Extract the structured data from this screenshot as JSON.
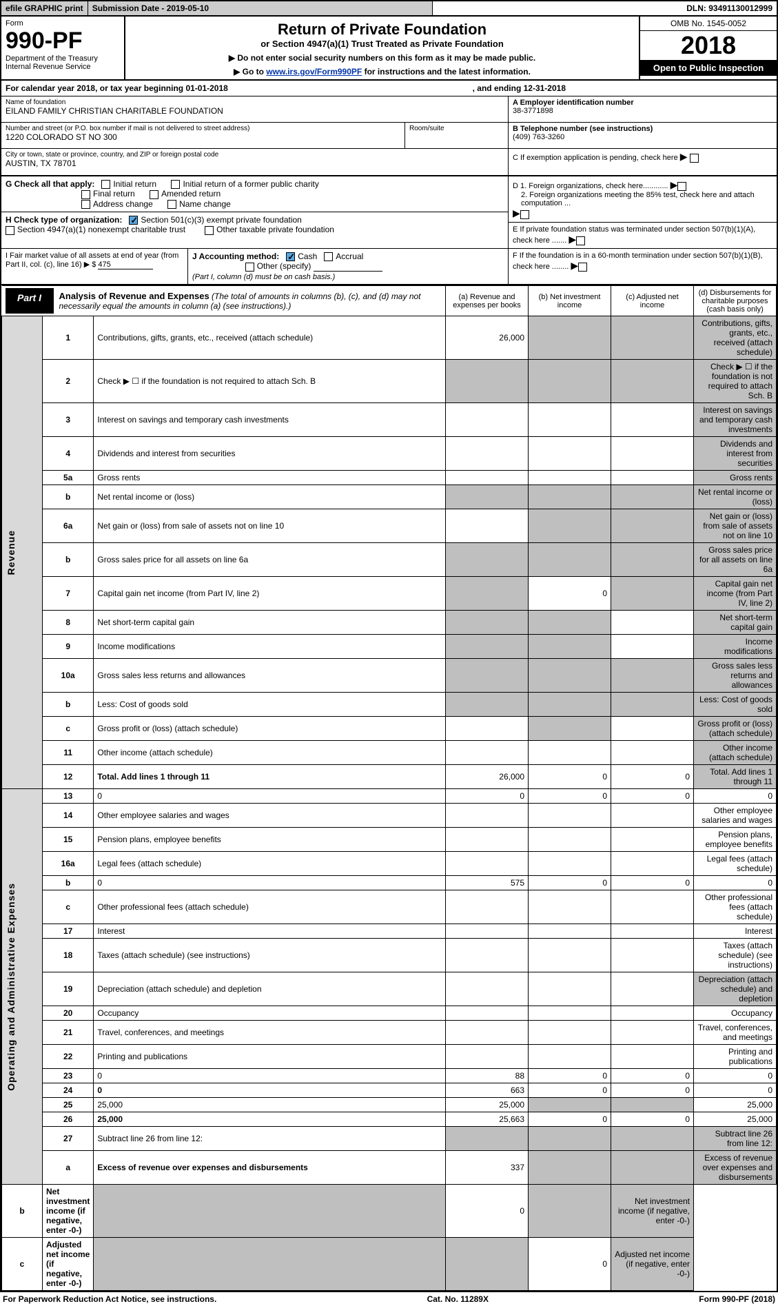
{
  "topbar": {
    "efile": "efile GRAPHIC print",
    "subdate_lbl": "Submission Date - 2019-05-10",
    "dln": "DLN: 93491130012999"
  },
  "header": {
    "form_lbl": "Form",
    "form_num": "990-PF",
    "dept": "Department of the Treasury",
    "irs": "Internal Revenue Service",
    "title": "Return of Private Foundation",
    "sub": "or Section 4947(a)(1) Trust Treated as Private Foundation",
    "instr1": "▶ Do not enter social security numbers on this form as it may be made public.",
    "instr2_pre": "▶ Go to ",
    "instr2_link": "www.irs.gov/Form990PF",
    "instr2_post": " for instructions and the latest information.",
    "omb": "OMB No. 1545-0052",
    "year": "2018",
    "open": "Open to Public Inspection"
  },
  "cal": {
    "text1": "For calendar year 2018, or tax year beginning 01-01-2018",
    "text2": ", and ending 12-31-2018"
  },
  "entity": {
    "name_lbl": "Name of foundation",
    "name": "EILAND FAMILY CHRISTIAN CHARITABLE FOUNDATION",
    "addr_lbl": "Number and street (or P.O. box number if mail is not delivered to street address)",
    "addr": "1220 COLORADO ST NO 300",
    "room_lbl": "Room/suite",
    "city_lbl": "City or town, state or province, country, and ZIP or foreign postal code",
    "city": "AUSTIN, TX  78701",
    "a_lbl": "A Employer identification number",
    "ein": "38-3771898",
    "b_lbl": "B Telephone number (see instructions)",
    "phone": "(409) 763-3260",
    "c_lbl": "C If exemption application is pending, check here",
    "d1": "D 1. Foreign organizations, check here............",
    "d2": "2. Foreign organizations meeting the 85% test, check here and attach computation ...",
    "e_lbl": "E  If private foundation status was terminated under section 507(b)(1)(A), check here .......",
    "f_lbl": "F  If the foundation is in a 60-month termination under section 507(b)(1)(B), check here ........"
  },
  "g": {
    "lbl": "G Check all that apply:",
    "opts": [
      "Initial return",
      "Initial return of a former public charity",
      "Final return",
      "Amended return",
      "Address change",
      "Name change"
    ]
  },
  "h": {
    "lbl": "H Check type of organization:",
    "o1": "Section 501(c)(3) exempt private foundation",
    "o2": "Section 4947(a)(1) nonexempt charitable trust",
    "o3": "Other taxable private foundation"
  },
  "i": {
    "lbl": "I Fair market value of all assets at end of year (from Part II, col. (c), line 16) ▶ $",
    "val": "475"
  },
  "j": {
    "lbl": "J Accounting method:",
    "cash": "Cash",
    "accr": "Accrual",
    "other": "Other (specify)",
    "note": "(Part I, column (d) must be on cash basis.)"
  },
  "part1": {
    "lbl": "Part I",
    "title": "Analysis of Revenue and Expenses",
    "note": "(The total of amounts in columns (b), (c), and (d) may not necessarily equal the amounts in column (a) (see instructions).)",
    "cols": {
      "a": "(a)   Revenue and expenses per books",
      "b": "(b)   Net investment income",
      "c": "(c)   Adjusted net income",
      "d": "(d)   Disbursements for charitable purposes (cash basis only)"
    }
  },
  "sidebars": {
    "rev": "Revenue",
    "exp": "Operating and Administrative Expenses"
  },
  "rows": [
    {
      "n": "1",
      "d": "Contributions, gifts, grants, etc., received (attach schedule)",
      "a": "26,000",
      "grey": [
        "b",
        "c",
        "d"
      ]
    },
    {
      "n": "2",
      "d": "Check ▶ ☐ if the foundation is not required to attach Sch. B",
      "grey": [
        "a",
        "b",
        "c",
        "d"
      ]
    },
    {
      "n": "3",
      "d": "Interest on savings and temporary cash investments",
      "grey": [
        "d"
      ]
    },
    {
      "n": "4",
      "d": "Dividends and interest from securities",
      "grey": [
        "d"
      ]
    },
    {
      "n": "5a",
      "d": "Gross rents",
      "grey": [
        "d"
      ]
    },
    {
      "n": "b",
      "d": "Net rental income or (loss)",
      "grey": [
        "a",
        "b",
        "c",
        "d"
      ]
    },
    {
      "n": "6a",
      "d": "Net gain or (loss) from sale of assets not on line 10",
      "grey": [
        "b",
        "c",
        "d"
      ]
    },
    {
      "n": "b",
      "d": "Gross sales price for all assets on line 6a",
      "grey": [
        "a",
        "b",
        "c",
        "d"
      ]
    },
    {
      "n": "7",
      "d": "Capital gain net income (from Part IV, line 2)",
      "b": "0",
      "grey": [
        "a",
        "c",
        "d"
      ]
    },
    {
      "n": "8",
      "d": "Net short-term capital gain",
      "grey": [
        "a",
        "b",
        "d"
      ]
    },
    {
      "n": "9",
      "d": "Income modifications",
      "grey": [
        "a",
        "b",
        "d"
      ]
    },
    {
      "n": "10a",
      "d": "Gross sales less returns and allowances",
      "grey": [
        "a",
        "b",
        "c",
        "d"
      ]
    },
    {
      "n": "b",
      "d": "Less: Cost of goods sold",
      "grey": [
        "a",
        "b",
        "c",
        "d"
      ]
    },
    {
      "n": "c",
      "d": "Gross profit or (loss) (attach schedule)",
      "grey": [
        "b",
        "d"
      ]
    },
    {
      "n": "11",
      "d": "Other income (attach schedule)",
      "grey": [
        "d"
      ]
    },
    {
      "n": "12",
      "d": "Total. Add lines 1 through 11",
      "a": "26,000",
      "b": "0",
      "c": "0",
      "grey": [
        "d"
      ],
      "bold": true
    },
    {
      "n": "13",
      "d": "0",
      "a": "0",
      "b": "0",
      "c": "0"
    },
    {
      "n": "14",
      "d": "Other employee salaries and wages"
    },
    {
      "n": "15",
      "d": "Pension plans, employee benefits"
    },
    {
      "n": "16a",
      "d": "Legal fees (attach schedule)"
    },
    {
      "n": "b",
      "d": "0",
      "a": "575",
      "b": "0",
      "c": "0"
    },
    {
      "n": "c",
      "d": "Other professional fees (attach schedule)"
    },
    {
      "n": "17",
      "d": "Interest"
    },
    {
      "n": "18",
      "d": "Taxes (attach schedule) (see instructions)"
    },
    {
      "n": "19",
      "d": "Depreciation (attach schedule) and depletion",
      "grey": [
        "d"
      ]
    },
    {
      "n": "20",
      "d": "Occupancy"
    },
    {
      "n": "21",
      "d": "Travel, conferences, and meetings"
    },
    {
      "n": "22",
      "d": "Printing and publications"
    },
    {
      "n": "23",
      "d": "0",
      "a": "88",
      "b": "0",
      "c": "0"
    },
    {
      "n": "24",
      "d": "0",
      "a": "663",
      "b": "0",
      "c": "0",
      "bold": true
    },
    {
      "n": "25",
      "d": "25,000",
      "a": "25,000",
      "grey": [
        "b",
        "c"
      ]
    },
    {
      "n": "26",
      "d": "25,000",
      "a": "25,663",
      "b": "0",
      "c": "0",
      "bold": true
    },
    {
      "n": "27",
      "d": "Subtract line 26 from line 12:",
      "grey": [
        "a",
        "b",
        "c",
        "d"
      ]
    },
    {
      "n": "a",
      "d": "Excess of revenue over expenses and disbursements",
      "a": "337",
      "grey": [
        "b",
        "c",
        "d"
      ],
      "bold": true
    },
    {
      "n": "b",
      "d": "Net investment income (if negative, enter -0-)",
      "b": "0",
      "grey": [
        "a",
        "c",
        "d"
      ],
      "bold": true
    },
    {
      "n": "c",
      "d": "Adjusted net income (if negative, enter -0-)",
      "c": "0",
      "grey": [
        "a",
        "b",
        "d"
      ],
      "bold": true
    }
  ],
  "footer": {
    "left": "For Paperwork Reduction Act Notice, see instructions.",
    "mid": "Cat. No. 11289X",
    "right": "Form 990-PF (2018)"
  },
  "colors": {
    "grey": "#bfbfbf",
    "side": "#d9d9d9",
    "link": "#0033aa",
    "check": "#5aa5de"
  }
}
